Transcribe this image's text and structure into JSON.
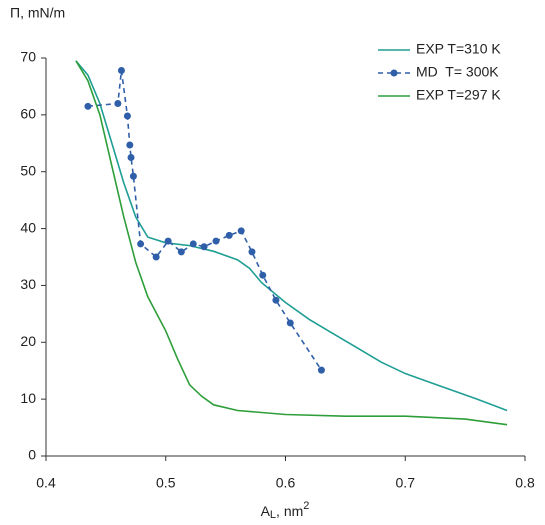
{
  "chart_data": {
    "type": "line",
    "ylabel": "Π, mN/m",
    "xlabel_parts": [
      "A",
      "L",
      ", nm",
      "2"
    ],
    "xlim": [
      0.4,
      0.8
    ],
    "xticks": [
      0.4,
      0.5,
      0.6,
      0.7,
      0.8
    ],
    "ylim": [
      0,
      70
    ],
    "yticks": [
      0,
      10,
      20,
      30,
      40,
      50,
      60,
      70
    ],
    "legend": "top-right",
    "series": [
      {
        "name": "EXP T=310 K",
        "color": "#1f9e94",
        "style": "solid",
        "markers": false,
        "x": [
          0.425,
          0.435,
          0.445,
          0.455,
          0.465,
          0.475,
          0.485,
          0.5,
          0.52,
          0.54,
          0.56,
          0.57,
          0.58,
          0.6,
          0.62,
          0.64,
          0.66,
          0.68,
          0.7,
          0.72,
          0.74,
          0.76,
          0.785
        ],
        "values": [
          69.5,
          67,
          62,
          55,
          48,
          42,
          38.5,
          37.5,
          37,
          36,
          34.5,
          33,
          30.5,
          27,
          24,
          21.5,
          19,
          16.5,
          14.5,
          13,
          11.5,
          10,
          8
        ]
      },
      {
        "name": "MD  T= 300K",
        "color": "#2f5fa8",
        "style": "dashed",
        "markers": true,
        "x": [
          0.435,
          0.46,
          0.463,
          0.468,
          0.47,
          0.471,
          0.473,
          0.479,
          0.492,
          0.502,
          0.513,
          0.523,
          0.532,
          0.542,
          0.553,
          0.563,
          0.572,
          0.581,
          0.592,
          0.604,
          0.63
        ],
        "values": [
          61.5,
          62,
          67.8,
          59.8,
          54.7,
          52.5,
          49.2,
          37.3,
          35,
          37.8,
          35.9,
          37.3,
          36.8,
          37.8,
          38.8,
          39.6,
          35.9,
          31.8,
          27.4,
          23.4,
          15.1
        ]
      },
      {
        "name": "EXP T=297 K",
        "color": "#2e9e3a",
        "style": "solid",
        "markers": false,
        "x": [
          0.425,
          0.435,
          0.445,
          0.455,
          0.465,
          0.475,
          0.485,
          0.5,
          0.51,
          0.52,
          0.53,
          0.54,
          0.56,
          0.6,
          0.65,
          0.7,
          0.72,
          0.75,
          0.785
        ],
        "values": [
          69.5,
          66,
          60,
          51,
          42,
          34,
          28,
          22,
          17,
          12.5,
          10.5,
          9,
          8,
          7.3,
          7,
          7,
          6.8,
          6.5,
          5.5
        ]
      }
    ]
  }
}
